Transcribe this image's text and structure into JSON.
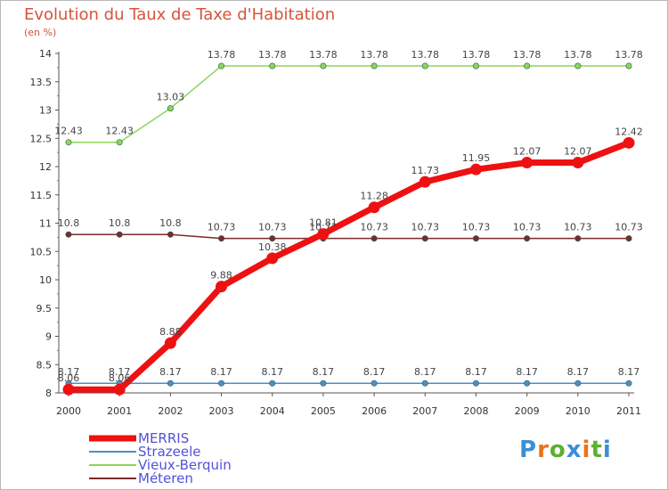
{
  "title": "Evolution du Taux de Taxe d'Habitation",
  "subtitle": "(en %)",
  "logo": {
    "text": "Proxiti",
    "letters": [
      "P",
      "r",
      "o",
      "x",
      "i",
      "t",
      "i"
    ],
    "colors": [
      "#3a8fd6",
      "#e8741a",
      "#5cb130",
      "#3a8fd6",
      "#e8741a",
      "#5cb130",
      "#3a8fd6"
    ]
  },
  "chart_data": {
    "type": "line",
    "x": [
      "2000",
      "2001",
      "2002",
      "2003",
      "2004",
      "2005",
      "2006",
      "2007",
      "2008",
      "2009",
      "2010",
      "2011"
    ],
    "ylim": [
      8,
      14
    ],
    "yticks": [
      "8",
      "8.5",
      "9",
      "9.5",
      "10",
      "10.5",
      "11",
      "11.5",
      "12",
      "12.5",
      "13",
      "13.5",
      "14"
    ],
    "grid": false,
    "legend": "bottom-left",
    "series": [
      {
        "name": "Vieux-Berquin",
        "color": "#8ed45a",
        "values": [
          12.43,
          12.43,
          13.03,
          13.78,
          13.78,
          13.78,
          13.78,
          13.78,
          13.78,
          13.78,
          13.78,
          13.78
        ],
        "labels": [
          "12.43",
          "12.43",
          "13.03",
          "13.78",
          "13.78",
          "13.78",
          "13.78",
          "13.78",
          "13.78",
          "13.78",
          "13.78",
          "13.78"
        ]
      },
      {
        "name": "Méteren",
        "color": "#7a2b2b",
        "values": [
          10.8,
          10.8,
          10.8,
          10.73,
          10.73,
          10.73,
          10.73,
          10.73,
          10.73,
          10.73,
          10.73,
          10.73
        ],
        "labels": [
          "10.8",
          "10.8",
          "10.8",
          "10.73",
          "10.73",
          "10.73",
          "10.73",
          "10.73",
          "10.73",
          "10.73",
          "10.73",
          "10.73"
        ]
      },
      {
        "name": "Strazeele",
        "color": "#4d8fc4",
        "values": [
          8.17,
          8.17,
          8.17,
          8.17,
          8.17,
          8.17,
          8.17,
          8.17,
          8.17,
          8.17,
          8.17,
          8.17
        ],
        "labels": [
          "8.17",
          "8.17",
          "8.17",
          "8.17",
          "8.17",
          "8.17",
          "8.17",
          "8.17",
          "8.17",
          "8.17",
          "8.17",
          "8.17"
        ]
      },
      {
        "name": "MERRIS",
        "color": "#ee1111",
        "values": [
          8.06,
          8.06,
          8.88,
          9.88,
          10.38,
          10.81,
          11.28,
          11.73,
          11.95,
          12.07,
          12.07,
          12.42
        ],
        "labels": [
          "8.06",
          "8.06",
          "8.88",
          "9.88",
          "10.38",
          "10.81",
          "11.28",
          "11.73",
          "11.95",
          "12.07",
          "12.07",
          "12.42"
        ]
      }
    ],
    "legend_order": [
      "MERRIS",
      "Strazeele",
      "Vieux-Berquin",
      "Méteren"
    ]
  }
}
